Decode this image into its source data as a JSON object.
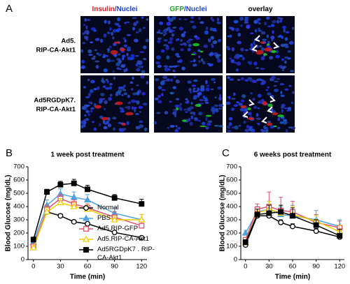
{
  "panel_a": {
    "label": "A",
    "headers": [
      [
        {
          "text": "Insulin",
          "color": "#e0202a"
        },
        {
          "text": "/Nuclei",
          "color": "#1f3fd0"
        }
      ],
      [
        {
          "text": "GFP",
          "color": "#1aa61a"
        },
        {
          "text": "/Nuclei",
          "color": "#1f3fd0"
        }
      ],
      [
        {
          "text": "overlay",
          "color": "#000000"
        }
      ]
    ],
    "rows": [
      [
        "Ad5.",
        "RIP-CA-Akt1"
      ],
      [
        "Ad5RGDpK7.",
        "RIP-CA-Akt1"
      ]
    ]
  },
  "chart_data": [
    {
      "panel": "B",
      "type": "line",
      "title": "1 week post treatment",
      "x_label": "Time (min)",
      "y_label": "Blood Glucose (mg/dL)",
      "x": [
        0,
        15,
        30,
        45,
        60,
        90,
        120
      ],
      "xlim": [
        -6,
        126
      ],
      "xticks": [
        0,
        30,
        60,
        90,
        120
      ],
      "ylim": [
        0,
        700
      ],
      "yticks": [
        0,
        100,
        200,
        300,
        400,
        500,
        600,
        700
      ],
      "legend": "right",
      "series": [
        {
          "name": "Normal",
          "color": "#000000",
          "marker": "circle",
          "filled": false,
          "values": [
            110,
            360,
            330,
            285,
            270,
            205,
            165
          ],
          "errors": [
            10,
            15,
            15,
            10,
            10,
            10,
            10
          ]
        },
        {
          "name": "PBS",
          "color": "#4fa3e0",
          "marker": "triangle",
          "filled": true,
          "values": [
            130,
            410,
            495,
            470,
            450,
            350,
            300
          ],
          "errors": [
            15,
            40,
            40,
            40,
            40,
            40,
            40
          ]
        },
        {
          "name": "Ad5.RIP-GFP",
          "color": "#e0506e",
          "marker": "square",
          "filled": false,
          "values": [
            100,
            380,
            460,
            420,
            390,
            320,
            255
          ],
          "errors": [
            10,
            30,
            30,
            30,
            30,
            40,
            30
          ]
        },
        {
          "name": "Ad5.RIP-CA-Akt1",
          "color": "#f0cc00",
          "marker": "triangle",
          "filled": false,
          "values": [
            90,
            360,
            430,
            400,
            380,
            300,
            300
          ],
          "errors": [
            10,
            30,
            30,
            30,
            30,
            30,
            40
          ]
        },
        {
          "name": "Ad5RGDpK7 . RIP-CA-Akt1",
          "color": "#000000",
          "marker": "square",
          "filled": true,
          "values": [
            150,
            510,
            565,
            575,
            530,
            465,
            420
          ],
          "errors": [
            20,
            20,
            25,
            30,
            30,
            25,
            35
          ]
        }
      ]
    },
    {
      "panel": "C",
      "type": "line",
      "title": "6 weeks post treatment",
      "x_label": "Time (min)",
      "y_label": "Blood Glucose (mg/dL)",
      "x": [
        0,
        15,
        30,
        45,
        60,
        90,
        120
      ],
      "xlim": [
        -6,
        126
      ],
      "xticks": [
        0,
        30,
        60,
        90,
        120
      ],
      "ylim": [
        0,
        700
      ],
      "yticks": [
        0,
        100,
        200,
        300,
        400,
        500,
        600,
        700
      ],
      "series": [
        {
          "color": "#000000",
          "marker": "circle",
          "filled": false,
          "values": [
            110,
            330,
            330,
            280,
            250,
            215,
            170
          ],
          "errors": [
            10,
            20,
            20,
            20,
            20,
            20,
            20
          ]
        },
        {
          "color": "#4fa3e0",
          "marker": "triangle",
          "filled": true,
          "values": [
            200,
            360,
            380,
            340,
            330,
            300,
            250
          ],
          "errors": [
            20,
            40,
            60,
            60,
            80,
            70,
            50
          ]
        },
        {
          "color": "#e0506e",
          "marker": "square",
          "filled": false,
          "values": [
            150,
            380,
            400,
            370,
            360,
            280,
            240
          ],
          "errors": [
            15,
            40,
            110,
            100,
            80,
            60,
            50
          ]
        },
        {
          "color": "#f0cc00",
          "marker": "triangle",
          "filled": false,
          "values": [
            130,
            350,
            380,
            350,
            340,
            290,
            210
          ],
          "errors": [
            15,
            30,
            60,
            60,
            60,
            40,
            50
          ]
        },
        {
          "color": "#000000",
          "marker": "square",
          "filled": true,
          "values": [
            130,
            340,
            350,
            360,
            330,
            260,
            180
          ],
          "errors": [
            20,
            40,
            60,
            50,
            60,
            40,
            50
          ]
        }
      ]
    }
  ]
}
